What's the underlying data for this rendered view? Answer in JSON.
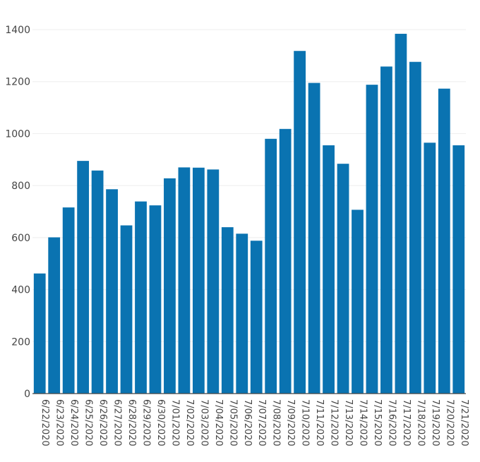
{
  "chart_data": {
    "type": "bar",
    "categories": [
      "6/22/2020",
      "6/23/2020",
      "6/24/2020",
      "6/25/2020",
      "6/26/2020",
      "6/27/2020",
      "6/28/2020",
      "6/29/2020",
      "6/30/2020",
      "7/01/2020",
      "7/02/2020",
      "7/03/2020",
      "7/04/2020",
      "7/05/2020",
      "7/06/2020",
      "7/07/2020",
      "7/08/2020",
      "7/09/2020",
      "7/10/2020",
      "7/11/2020",
      "7/12/2020",
      "7/13/2020",
      "7/14/2020",
      "7/15/2020",
      "7/16/2020",
      "7/17/2020",
      "7/18/2020",
      "7/19/2020",
      "7/20/2020",
      "7/21/2020"
    ],
    "values": [
      462,
      601,
      716,
      895,
      858,
      786,
      647,
      739,
      724,
      828,
      870,
      869,
      862,
      640,
      615,
      588,
      980,
      1018,
      1318,
      1195,
      955,
      884,
      707,
      1188,
      1258,
      1384,
      1276,
      965,
      1173,
      955
    ],
    "ylim": [
      0,
      1400
    ],
    "yticks": [
      0,
      200,
      400,
      600,
      800,
      1000,
      1200,
      1400
    ],
    "xlabel": "",
    "ylabel": "",
    "title": "",
    "grid": true,
    "bar_color": "#0a73b1",
    "x_tick_rotation": "vertical"
  }
}
